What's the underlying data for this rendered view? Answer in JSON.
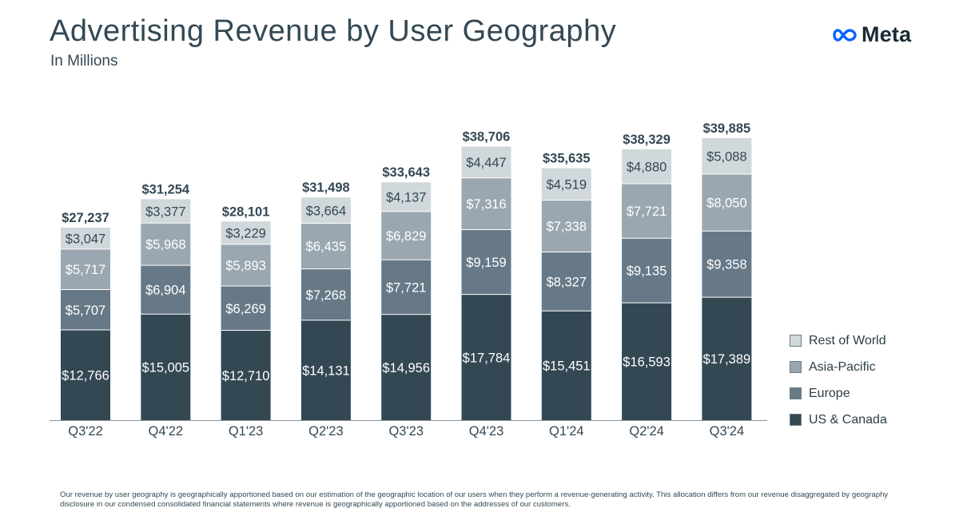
{
  "title": "Advertising Revenue by User Geography",
  "subtitle": "In Millions",
  "logo": {
    "text": "Meta",
    "icon": "meta-infinity-icon",
    "color": "#0866ff"
  },
  "footnote": "Our revenue by user geography is geographically apportioned based on our estimation of the geographic location of our users when they perform a revenue-generating activity. This allocation differs from our revenue disaggregated by geography disclosure in our condensed consolidated financial statements where revenue is geographically apportioned based on the addresses of our customers.",
  "chart_data": {
    "type": "bar",
    "stacked": true,
    "categories": [
      "Q3'22",
      "Q4'22",
      "Q1'23",
      "Q2'23",
      "Q3'23",
      "Q4'23",
      "Q1'24",
      "Q2'24",
      "Q3'24"
    ],
    "series": [
      {
        "name": "US & Canada",
        "color": "#344854",
        "label_color": "#ffffff",
        "values": [
          12766,
          15005,
          12710,
          14131,
          14956,
          17784,
          15451,
          16593,
          17389
        ]
      },
      {
        "name": "Europe",
        "color": "#677987",
        "label_color": "#ffffff",
        "values": [
          5707,
          6904,
          6269,
          7268,
          7721,
          9159,
          8327,
          9135,
          9358
        ]
      },
      {
        "name": "Asia-Pacific",
        "color": "#9aa7b0",
        "label_color": "#ffffff",
        "values": [
          5717,
          5968,
          5893,
          6435,
          6829,
          7316,
          7338,
          7721,
          8050
        ]
      },
      {
        "name": "Rest of World",
        "color": "#d1d8dc",
        "label_color": "#344854",
        "values": [
          3047,
          3377,
          3229,
          3664,
          4137,
          4447,
          4519,
          4880,
          5088
        ]
      }
    ],
    "value_labels": [
      [
        "$12,766",
        "$15,005",
        "$12,710",
        "$14,131",
        "$14,956",
        "$17,784",
        "$15,451",
        "$16,593",
        "$17,389"
      ],
      [
        "$5,707",
        "$6,904",
        "$6,269",
        "$7,268",
        "$7,721",
        "$9,159",
        "$8,327",
        "$9,135",
        "$9,358"
      ],
      [
        "$5,717",
        "$5,968",
        "$5,893",
        "$6,435",
        "$6,829",
        "$7,316",
        "$7,338",
        "$7,721",
        "$8,050"
      ],
      [
        "$3,047",
        "$3,377",
        "$3,229",
        "$3,664",
        "$4,137",
        "$4,447",
        "$4,519",
        "$4,880",
        "$5,088"
      ]
    ],
    "totals": [
      27237,
      31254,
      28101,
      31498,
      33643,
      38706,
      35635,
      38329,
      39885
    ],
    "total_labels": [
      "$27,237",
      "$31,254",
      "$28,101",
      "$31,498",
      "$33,643",
      "$38,706",
      "$35,635",
      "$38,329",
      "$39,885"
    ],
    "legend_order": [
      "Rest of World",
      "Asia-Pacific",
      "Europe",
      "US & Canada"
    ],
    "legend_position": "right",
    "ylim": [
      0,
      39885
    ],
    "grid": false
  }
}
